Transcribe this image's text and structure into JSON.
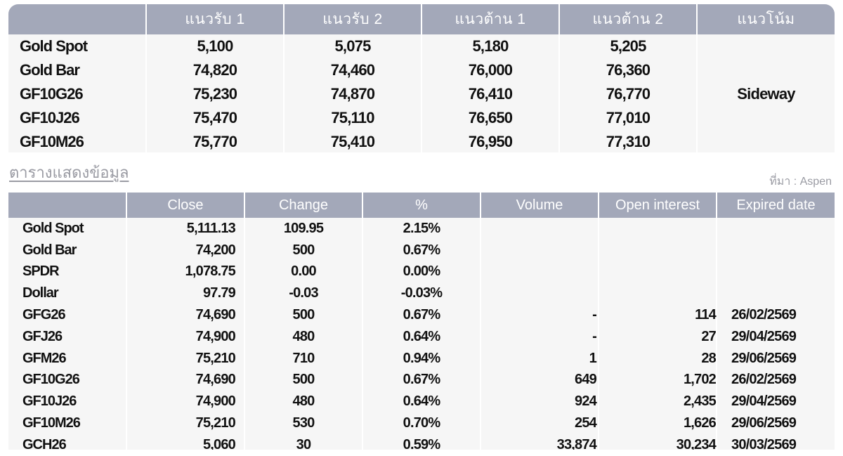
{
  "support_table": {
    "headers": [
      "",
      "แนวรับ 1",
      "แนวรับ 2",
      "แนวต้าน 1",
      "แนวต้าน 2",
      "แนวโน้ม"
    ],
    "rows": [
      {
        "name": "Gold Spot",
        "s1": "5,100",
        "s2": "5,075",
        "r1": "5,180",
        "r2": "5,205"
      },
      {
        "name": "Gold Bar",
        "s1": "74,820",
        "s2": "74,460",
        "r1": "76,000",
        "r2": "76,360"
      },
      {
        "name": "GF10G26",
        "s1": "75,230",
        "s2": "74,870",
        "r1": "76,410",
        "r2": "76,770"
      },
      {
        "name": "GF10J26",
        "s1": "75,470",
        "s2": "75,110",
        "r1": "76,650",
        "r2": "77,010"
      },
      {
        "name": "GF10M26",
        "s1": "75,770",
        "s2": "75,410",
        "r1": "76,950",
        "r2": "77,310"
      }
    ],
    "trend": "Sideway"
  },
  "section_title": "ตารางแสดงข้อมูล",
  "source_note": "ที่มา : Aspen",
  "data_table": {
    "headers": [
      "",
      "Close",
      "Change",
      "%",
      "Volume",
      "Open interest",
      "Expired date"
    ],
    "rows": [
      {
        "name": "Gold Spot",
        "close": "5,111.13",
        "change": "109.95",
        "pct": "2.15%",
        "volume": "",
        "oi": "",
        "expired": "",
        "dir": "pos"
      },
      {
        "name": "Gold Bar",
        "close": "74,200",
        "change": "500",
        "pct": "0.67%",
        "volume": "",
        "oi": "",
        "expired": "",
        "dir": "pos"
      },
      {
        "name": "SPDR",
        "close": "1,078.75",
        "change": "0.00",
        "pct": "0.00%",
        "volume": "",
        "oi": "",
        "expired": "",
        "dir": "flat"
      },
      {
        "name": "Dollar",
        "close": "97.79",
        "change": "-0.03",
        "pct": "-0.03%",
        "volume": "",
        "oi": "",
        "expired": "",
        "dir": "neg"
      },
      {
        "name": "GFG26",
        "close": "74,690",
        "change": "500",
        "pct": "0.67%",
        "volume": "-",
        "oi": "114",
        "expired": "26/02/2569",
        "dir": "pos"
      },
      {
        "name": "GFJ26",
        "close": "74,900",
        "change": "480",
        "pct": "0.64%",
        "volume": "-",
        "oi": "27",
        "expired": "29/04/2569",
        "dir": "pos"
      },
      {
        "name": "GFM26",
        "close": "75,210",
        "change": "710",
        "pct": "0.94%",
        "volume": "1",
        "oi": "28",
        "expired": "29/06/2569",
        "dir": "pos"
      },
      {
        "name": "GF10G26",
        "close": "74,690",
        "change": "500",
        "pct": "0.67%",
        "volume": "649",
        "oi": "1,702",
        "expired": "26/02/2569",
        "dir": "pos"
      },
      {
        "name": "GF10J26",
        "close": "74,900",
        "change": "480",
        "pct": "0.64%",
        "volume": "924",
        "oi": "2,435",
        "expired": "29/04/2569",
        "dir": "pos"
      },
      {
        "name": "GF10M26",
        "close": "75,210",
        "change": "530",
        "pct": "0.70%",
        "volume": "254",
        "oi": "1,626",
        "expired": "29/06/2569",
        "dir": "pos"
      },
      {
        "name": "GCH26",
        "close": "5,060",
        "change": "30",
        "pct": "0.59%",
        "volume": "33,874",
        "oi": "30,234",
        "expired": "30/03/2569",
        "dir": "pos"
      }
    ]
  },
  "colors": {
    "header_bg": "#a3a8b9",
    "positive": "#1a9a3c",
    "negative": "#e11a1a",
    "body_bg": "#f6f6f6"
  }
}
